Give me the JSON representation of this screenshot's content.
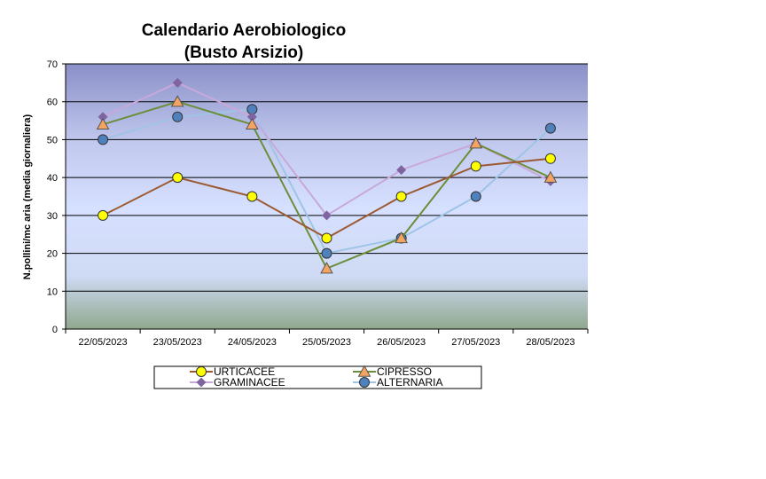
{
  "chart_data": {
    "type": "line",
    "title": "Calendario Aerobiologico",
    "subtitle": "(Busto Arsizio)",
    "ylabel": "N.pollini/mc aria (media giornaliera)",
    "xlabel": "",
    "ylim": [
      0,
      70
    ],
    "yticks": [
      0,
      10,
      20,
      30,
      40,
      50,
      60,
      70
    ],
    "grid": true,
    "legend_position": "bottom",
    "categories": [
      "22/05/2023",
      "23/05/2023",
      "24/05/2023",
      "25/05/2023",
      "26/05/2023",
      "27/05/2023",
      "28/05/2023"
    ],
    "series": [
      {
        "name": "URTICACEE",
        "color": "#9c5a32",
        "marker": "circle",
        "marker_color": "#ffff00",
        "values": [
          30,
          40,
          35,
          24,
          35,
          43,
          45
        ]
      },
      {
        "name": "CIPRESSO",
        "color": "#6b8e3a",
        "marker": "triangle",
        "marker_color": "#f4a460",
        "values": [
          54,
          60,
          54,
          16,
          24,
          49,
          40
        ]
      },
      {
        "name": "GRAMINACEE",
        "color": "#c8a8d8",
        "marker": "diamond",
        "marker_color": "#8064a2",
        "values": [
          56,
          65,
          56,
          30,
          42,
          49,
          39
        ]
      },
      {
        "name": "ALTERNARIA",
        "color": "#9ec4e6",
        "marker": "circle",
        "marker_color": "#4f81bd",
        "values": [
          50,
          56,
          58,
          20,
          24,
          35,
          53
        ]
      }
    ]
  }
}
